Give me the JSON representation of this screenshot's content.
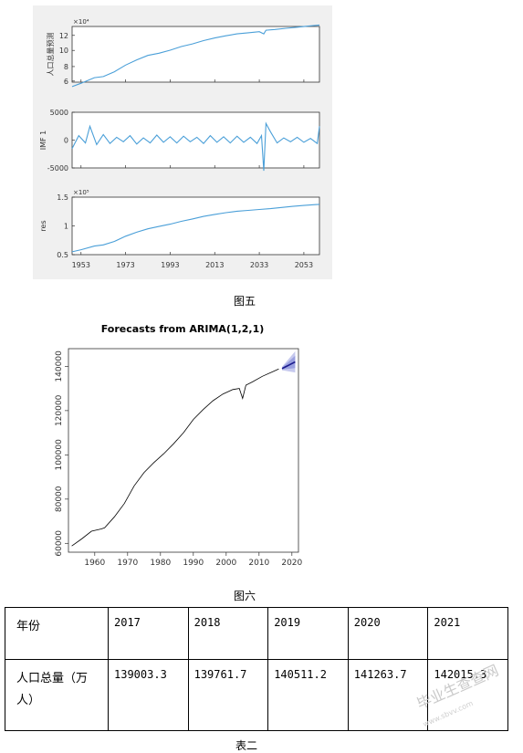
{
  "colors": {
    "series": "#4a9fd8",
    "panel_bg": "#f0f0f0",
    "forecast": "#1a1a8c",
    "band_outer": "#c6c9ee",
    "band_inner": "#9aa0e0"
  },
  "figure5": {
    "caption": "图五",
    "x_ticks": [
      "1953",
      "1973",
      "1993",
      "2013",
      "2033",
      "2053"
    ],
    "panels": [
      {
        "ylabel": "人口总量预测",
        "exponent": "×10⁴",
        "y_ticks": [
          "12",
          "10",
          "8",
          "6"
        ]
      },
      {
        "ylabel": "IMF 1",
        "exponent": "",
        "y_ticks": [
          "5000",
          "0",
          "-5000"
        ]
      },
      {
        "ylabel": "res",
        "exponent": "×10⁵",
        "y_ticks": [
          "1.5",
          "1",
          "0.5"
        ]
      }
    ]
  },
  "figure6": {
    "caption": "图六",
    "title": "Forecasts from ARIMA(1,2,1)",
    "x_ticks": [
      "1960",
      "1970",
      "1980",
      "1990",
      "2000",
      "2010",
      "2020"
    ],
    "y_ticks": [
      "60000",
      "80000",
      "100000",
      "120000",
      "140000"
    ]
  },
  "chart_data": [
    {
      "type": "line",
      "title": "",
      "panels": [
        {
          "ylabel": "人口总量预测",
          "x": [
            1949,
            1953,
            1959,
            1963,
            1968,
            1973,
            1978,
            1983,
            1988,
            1993,
            1998,
            2003,
            2008,
            2013,
            2018,
            2023,
            2028,
            2033,
            2035,
            2036,
            2040,
            2045,
            2050,
            2055,
            2060
          ],
          "y": [
            54000,
            58500,
            66000,
            67500,
            74000,
            83000,
            90000,
            96000,
            99000,
            103000,
            108000,
            111500,
            116000,
            119500,
            122500,
            125000,
            126500,
            128000,
            125000,
            130000,
            131000,
            132500,
            134000,
            135500,
            137000
          ],
          "ylim": [
            60000,
            135000
          ]
        },
        {
          "ylabel": "IMF 1",
          "x": [
            1949,
            1952,
            1955,
            1957,
            1960,
            1963,
            1966,
            1969,
            1972,
            1975,
            1978,
            1981,
            1984,
            1987,
            1990,
            1993,
            1996,
            1999,
            2002,
            2005,
            2008,
            2011,
            2014,
            2017,
            2020,
            2023,
            2026,
            2029,
            2032,
            2034,
            2035,
            2036,
            2038,
            2041,
            2044,
            2047,
            2050,
            2053,
            2056,
            2059,
            2060
          ],
          "y": [
            -1500,
            800,
            -500,
            2500,
            -800,
            1000,
            -600,
            500,
            -300,
            800,
            -700,
            400,
            -500,
            900,
            -400,
            600,
            -500,
            700,
            -300,
            500,
            -600,
            800,
            -400,
            600,
            -500,
            700,
            -400,
            500,
            -600,
            800,
            -5500,
            3000,
            1500,
            -500,
            400,
            -300,
            500,
            -400,
            300,
            -600,
            2500
          ],
          "ylim": [
            -5000,
            5000
          ]
        },
        {
          "ylabel": "res",
          "x": [
            1949,
            1953,
            1959,
            1963,
            1968,
            1973,
            1978,
            1983,
            1988,
            1993,
            1998,
            2003,
            2008,
            2013,
            2018,
            2023,
            2028,
            2033,
            2038,
            2043,
            2048,
            2053,
            2058,
            2060
          ],
          "y": [
            55000,
            58500,
            65000,
            67000,
            73000,
            82000,
            89000,
            95000,
            99000,
            103000,
            108000,
            112000,
            116500,
            120000,
            123000,
            125500,
            127000,
            128500,
            130000,
            132000,
            134000,
            135500,
            137000,
            137500
          ],
          "ylim": [
            50000,
            150000
          ]
        }
      ],
      "x_range": [
        1949,
        2060
      ]
    },
    {
      "type": "line",
      "title": "Forecasts from ARIMA(1,2,1)",
      "xlim": [
        1952,
        2022
      ],
      "ylim": [
        56000,
        148000
      ],
      "x": [
        1953,
        1956,
        1959,
        1962,
        1963,
        1966,
        1969,
        1972,
        1975,
        1978,
        1981,
        1984,
        1987,
        1990,
        1993,
        1996,
        1999,
        2002,
        2004,
        2005,
        2006,
        2008,
        2011,
        2014,
        2016
      ],
      "y": [
        58800,
        62000,
        65500,
        66500,
        67000,
        72000,
        78000,
        86000,
        92000,
        96500,
        100500,
        105000,
        110000,
        116000,
        120500,
        124500,
        127500,
        129500,
        130000,
        125500,
        131500,
        133000,
        135500,
        137500,
        138800
      ],
      "forecast": {
        "x": [
          2017,
          2018,
          2019,
          2020,
          2021
        ],
        "y": [
          139003.3,
          139761.7,
          140511.2,
          141263.7,
          142015.3
        ],
        "band_outer_half": [
          800,
          1800,
          2800,
          3800,
          4800
        ],
        "band_inner_half": [
          400,
          1000,
          1600,
          2200,
          2800
        ]
      }
    }
  ],
  "table": {
    "caption": "表二",
    "row_header": "年份",
    "years": [
      "2017",
      "2018",
      "2019",
      "2020",
      "2021"
    ],
    "label": "人口总量（万人）",
    "values": [
      "139003.3",
      "139761.7",
      "140511.2",
      "141263.7",
      "142015.3"
    ]
  },
  "watermark": {
    "text": "毕业生查查网",
    "url": "www.sbvv.com"
  }
}
